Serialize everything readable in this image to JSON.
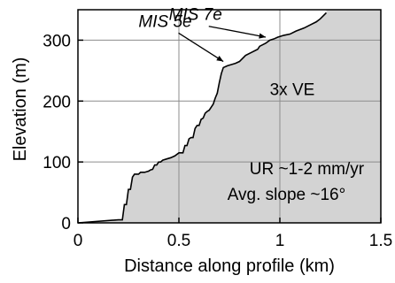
{
  "chart_data": {
    "type": "area",
    "title": "",
    "xlabel": "Distance along profile (km)",
    "ylabel": "Elevation (m)",
    "xlim": [
      0,
      1.5
    ],
    "ylim": [
      0,
      350
    ],
    "xticks": [
      0,
      0.5,
      1,
      1.5
    ],
    "xtick_labels": [
      "0",
      "0.5",
      "1",
      "1.5"
    ],
    "yticks": [
      0,
      100,
      200,
      300
    ],
    "ytick_labels": [
      "0",
      "100",
      "200",
      "300"
    ],
    "grid": true,
    "fill_color": "#d3d3d3",
    "line_color": "#000000",
    "series": [
      {
        "x": [
          0,
          0.2,
          0.22,
          0.23,
          0.24,
          0.25,
          0.26,
          0.27,
          0.28,
          0.3,
          0.31,
          0.33,
          0.35,
          0.36,
          0.37,
          0.38,
          0.39,
          0.4,
          0.41,
          0.42,
          0.44,
          0.46,
          0.48,
          0.5,
          0.52,
          0.53,
          0.54,
          0.55,
          0.56,
          0.57,
          0.58,
          0.59,
          0.6,
          0.61,
          0.62,
          0.63,
          0.64,
          0.65,
          0.66,
          0.67,
          0.68,
          0.69,
          0.7,
          0.71,
          0.72,
          0.74,
          0.76,
          0.78,
          0.8,
          0.83,
          0.86,
          0.89,
          0.9,
          0.93,
          0.95,
          0.97,
          0.99,
          1.02,
          1.05,
          1.08,
          1.12,
          1.15,
          1.18,
          1.2,
          1.23
        ],
        "y": [
          0,
          5,
          5,
          30,
          30,
          55,
          55,
          75,
          80,
          80,
          83,
          83,
          85,
          87,
          88,
          95,
          95,
          100,
          100,
          103,
          105,
          107,
          110,
          115,
          115,
          127,
          127,
          138,
          140,
          140,
          155,
          160,
          160,
          170,
          172,
          180,
          183,
          185,
          190,
          195,
          205,
          213,
          230,
          245,
          255,
          258,
          260,
          262,
          265,
          275,
          280,
          285,
          290,
          295,
          300,
          302,
          305,
          308,
          310,
          315,
          320,
          325,
          330,
          335,
          345
        ]
      }
    ],
    "annotations": [
      {
        "text": "MIS 5e",
        "italic": true,
        "x": 0.3,
        "y": 322,
        "arrow_to": [
          0.72,
          265
        ]
      },
      {
        "text": "MIS 7e",
        "italic": true,
        "x": 0.45,
        "y": 333,
        "arrow_to": [
          0.93,
          305
        ]
      },
      {
        "text": "3x VE",
        "italic": false,
        "x": 0.95,
        "y": 210
      },
      {
        "text": "UR ~1-2 mm/yr",
        "italic": false,
        "x": 0.85,
        "y": 80
      },
      {
        "text": "Avg. slope ~16°",
        "italic": false,
        "x": 0.74,
        "y": 38
      }
    ]
  }
}
